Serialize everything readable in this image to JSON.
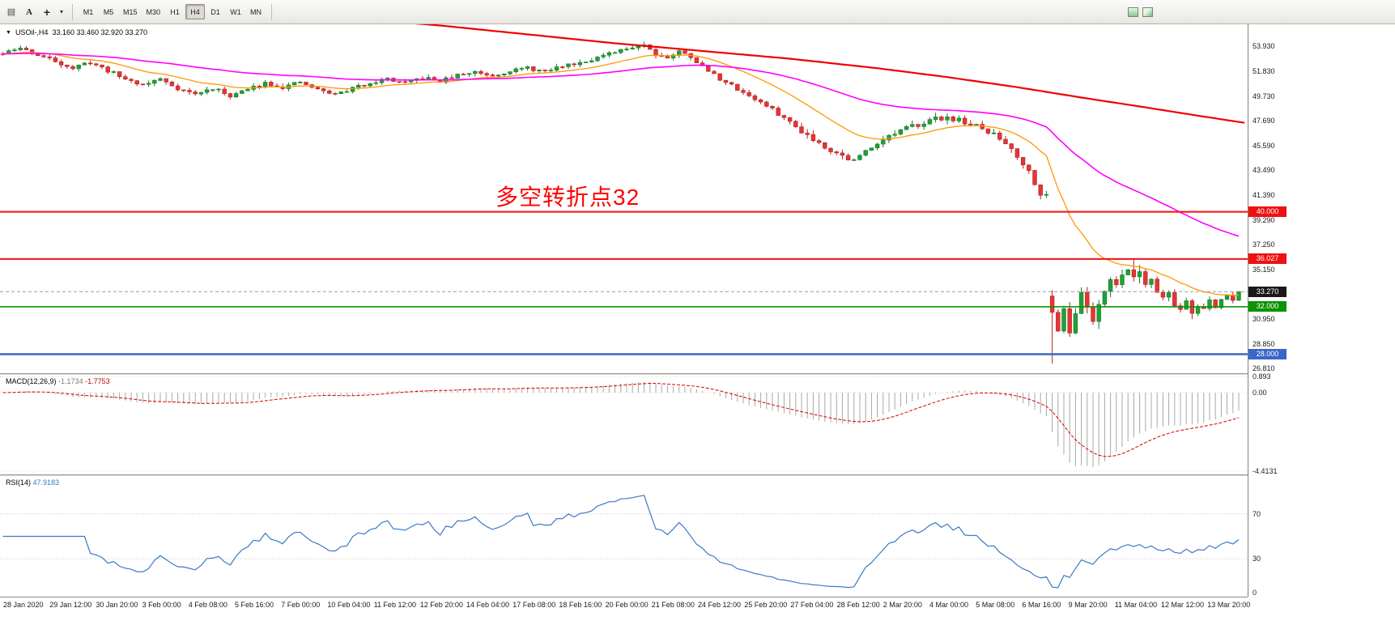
{
  "toolbar": {
    "icons": [
      {
        "name": "charts-toolbar-icon",
        "glyph": "▤"
      },
      {
        "name": "text-tool-icon",
        "glyph": "A"
      },
      {
        "name": "crosshair-tool-icon",
        "glyph": "+"
      },
      {
        "name": "drawing-dropdown-icon",
        "glyph": "▾"
      }
    ],
    "timeframes": [
      {
        "label": "M1",
        "active": false
      },
      {
        "label": "M5",
        "active": false
      },
      {
        "label": "M15",
        "active": false
      },
      {
        "label": "M30",
        "active": false
      },
      {
        "label": "H1",
        "active": false
      },
      {
        "label": "H4",
        "active": true
      },
      {
        "label": "D1",
        "active": false
      },
      {
        "label": "W1",
        "active": false
      },
      {
        "label": "MN",
        "active": false
      }
    ]
  },
  "chart": {
    "symbol_header": {
      "dropdown": "▼",
      "title": "USOil-,H4",
      "ohlc": "33.160 33.460 32.920 33.270"
    },
    "annotation": {
      "text": "多空转折点32",
      "color": "#ff0000"
    },
    "price_axis": {
      "ticks": [
        {
          "label": "53.930",
          "value": 53.93
        },
        {
          "label": "51.830",
          "value": 51.83
        },
        {
          "label": "49.730",
          "value": 49.73
        },
        {
          "label": "47.690",
          "value": 47.69
        },
        {
          "label": "45.590",
          "value": 45.59
        },
        {
          "label": "43.490",
          "value": 43.49
        },
        {
          "label": "41.390",
          "value": 41.39
        },
        {
          "label": "39.290",
          "value": 39.29
        },
        {
          "label": "37.250",
          "value": 37.25
        },
        {
          "label": "35.150",
          "value": 35.15
        },
        {
          "label": "30.950",
          "value": 30.95
        },
        {
          "label": "28.850",
          "value": 28.85
        },
        {
          "label": "26.810",
          "value": 26.81
        }
      ],
      "badges": [
        {
          "label": "40.000",
          "value": 40.0,
          "bg": "#ee1111"
        },
        {
          "label": "36.027",
          "value": 36.027,
          "bg": "#ee1111"
        },
        {
          "label": "33.270",
          "value": 33.27,
          "bg": "#1a1a1a"
        },
        {
          "label": "32.000",
          "value": 32.0,
          "bg": "#0a9400"
        },
        {
          "label": "28.000",
          "value": 28.0,
          "bg": "#3a66c8"
        }
      ]
    },
    "hlines": [
      {
        "value": 40.0,
        "color": "#ee1111",
        "width": 2
      },
      {
        "value": 36.027,
        "color": "#ee1111",
        "width": 2
      },
      {
        "value": 32.0,
        "color": "#0a9400",
        "width": 1.6
      },
      {
        "value": 28.0,
        "color": "#3a66c8",
        "width": 2.4
      }
    ],
    "bid_line": {
      "value": 33.27,
      "color": "#9a9a9a"
    }
  },
  "macd_panel": {
    "label": "MACD(12,26,9)",
    "value_main": "-1.1734",
    "value_signal": "-1.7753",
    "range": [
      1.0,
      -4.6
    ],
    "histogram_color": "#a8a8a8",
    "signal_color": "#d40000",
    "axis": [
      {
        "label": "0.893",
        "value": 0.893
      },
      {
        "label": "0.00",
        "value": 0
      },
      {
        "label": "-4.4131",
        "value": -4.4131
      }
    ]
  },
  "rsi_panel": {
    "label": "RSI(14)",
    "value": "47.9183",
    "color": "#3b78c4",
    "levels": [
      70,
      30
    ],
    "axis": [
      {
        "label": "70",
        "value": 70
      },
      {
        "label": "30",
        "value": 30
      },
      {
        "label": "0",
        "value": 0
      }
    ]
  },
  "time_axis": {
    "labels": [
      "28 Jan 2020",
      "29 Jan 12:00",
      "30 Jan 20:00",
      "3 Feb 00:00",
      "4 Feb 08:00",
      "5 Feb 16:00",
      "7 Feb 00:00",
      "10 Feb 04:00",
      "11 Feb 12:00",
      "12 Feb 20:00",
      "14 Feb 04:00",
      "17 Feb 08:00",
      "18 Feb 16:00",
      "20 Feb 00:00",
      "21 Feb 08:00",
      "24 Feb 12:00",
      "25 Feb 20:00",
      "27 Feb 04:00",
      "28 Feb 12:00",
      "2 Mar 20:00",
      "4 Mar 00:00",
      "5 Mar 08:00",
      "6 Mar 16:00",
      "9 Mar 20:00",
      "11 Mar 04:00",
      "12 Mar 12:00",
      "13 Mar 20:00"
    ]
  },
  "chart_data": {
    "type": "candlestick",
    "symbol": "USOil-",
    "timeframe": "H4",
    "bars": 213,
    "seed": 11,
    "last_close": 33.27,
    "view_range": [
      26.4,
      55.8
    ],
    "price_anchors": [
      [
        0,
        53.3
      ],
      [
        3,
        53.8
      ],
      [
        6,
        53.2
      ],
      [
        9,
        52.7
      ],
      [
        12,
        52.1
      ],
      [
        15,
        52.6
      ],
      [
        18,
        51.9
      ],
      [
        21,
        51.2
      ],
      [
        24,
        50.7
      ],
      [
        27,
        51.2
      ],
      [
        30,
        50.4
      ],
      [
        33,
        49.9
      ],
      [
        36,
        50.4
      ],
      [
        39,
        49.8
      ],
      [
        42,
        50.3
      ],
      [
        45,
        50.9
      ],
      [
        48,
        50.5
      ],
      [
        51,
        50.9
      ],
      [
        54,
        50.3
      ],
      [
        57,
        49.9
      ],
      [
        60,
        50.4
      ],
      [
        63,
        50.9
      ],
      [
        66,
        51.2
      ],
      [
        69,
        50.8
      ],
      [
        72,
        51.3
      ],
      [
        75,
        51.0
      ],
      [
        78,
        51.5
      ],
      [
        81,
        51.8
      ],
      [
        84,
        51.5
      ],
      [
        87,
        51.9
      ],
      [
        90,
        52.1
      ],
      [
        93,
        51.8
      ],
      [
        96,
        52.3
      ],
      [
        99,
        52.6
      ],
      [
        102,
        53.0
      ],
      [
        105,
        53.4
      ],
      [
        108,
        53.9
      ],
      [
        110,
        54.1
      ],
      [
        112,
        53.3
      ],
      [
        114,
        53.0
      ],
      [
        116,
        53.5
      ],
      [
        118,
        53.1
      ],
      [
        120,
        52.2
      ],
      [
        124,
        50.9
      ],
      [
        128,
        49.8
      ],
      [
        132,
        48.6
      ],
      [
        136,
        47.2
      ],
      [
        140,
        45.8
      ],
      [
        144,
        44.7
      ],
      [
        146,
        44.3
      ],
      [
        150,
        45.9
      ],
      [
        154,
        46.8
      ],
      [
        158,
        47.6
      ],
      [
        162,
        48.0
      ],
      [
        166,
        47.4
      ],
      [
        170,
        46.5
      ],
      [
        173,
        45.4
      ],
      [
        176,
        43.4
      ],
      [
        178,
        41.6
      ],
      [
        179,
        41.3
      ],
      [
        180,
        31.5
      ],
      [
        181,
        30.1
      ],
      [
        182,
        31.9
      ],
      [
        183,
        29.9
      ],
      [
        184,
        31.3
      ],
      [
        185,
        33.2
      ],
      [
        186,
        32.0
      ],
      [
        187,
        30.8
      ],
      [
        188,
        32.3
      ],
      [
        189,
        33.4
      ],
      [
        190,
        34.3
      ],
      [
        191,
        33.7
      ],
      [
        192,
        34.8
      ],
      [
        193,
        35.2
      ],
      [
        194,
        34.5
      ],
      [
        195,
        35.0
      ],
      [
        196,
        34.0
      ],
      [
        197,
        34.4
      ],
      [
        198,
        33.3
      ],
      [
        199,
        32.8
      ],
      [
        200,
        33.2
      ],
      [
        201,
        32.2
      ],
      [
        202,
        31.7
      ],
      [
        203,
        32.5
      ],
      [
        204,
        31.5
      ],
      [
        205,
        32.0
      ],
      [
        206,
        31.8
      ],
      [
        207,
        32.5
      ],
      [
        208,
        31.9
      ],
      [
        209,
        32.6
      ],
      [
        210,
        33.0
      ],
      [
        211,
        32.6
      ],
      [
        212,
        33.27
      ]
    ],
    "gap_opens": {
      "180": 32.9
    },
    "special": {
      "high": {
        "110": 54.35,
        "194": 36.03
      },
      "low": {
        "180": 27.2,
        "204": 30.95
      }
    },
    "colors": {
      "up": "#21a038",
      "up_dark": "#147a27",
      "down": "#e33636",
      "down_dark": "#b51f1f"
    },
    "ma": [
      {
        "name": "ma-fast",
        "period": 18,
        "color": "#ff9800",
        "width": 1.3
      },
      {
        "name": "ma-mid",
        "period": 65,
        "color": "#ff00ff",
        "width": 1.6
      }
    ],
    "slow_ma": {
      "name": "ma-slow",
      "color": "#f00000",
      "width": 2.2,
      "anchors": [
        [
          60,
          56.3
        ],
        [
          75,
          55.7
        ],
        [
          90,
          54.95
        ],
        [
          105,
          54.2
        ],
        [
          120,
          53.55
        ],
        [
          135,
          52.9
        ],
        [
          150,
          52.1
        ],
        [
          162,
          51.35
        ],
        [
          174,
          50.5
        ],
        [
          186,
          49.55
        ],
        [
          196,
          48.8
        ],
        [
          205,
          48.1
        ],
        [
          213,
          47.5
        ]
      ]
    },
    "indicators": {
      "macd": {
        "fast": 12,
        "slow": 26,
        "signal": 9
      },
      "rsi": {
        "period": 14
      }
    }
  }
}
